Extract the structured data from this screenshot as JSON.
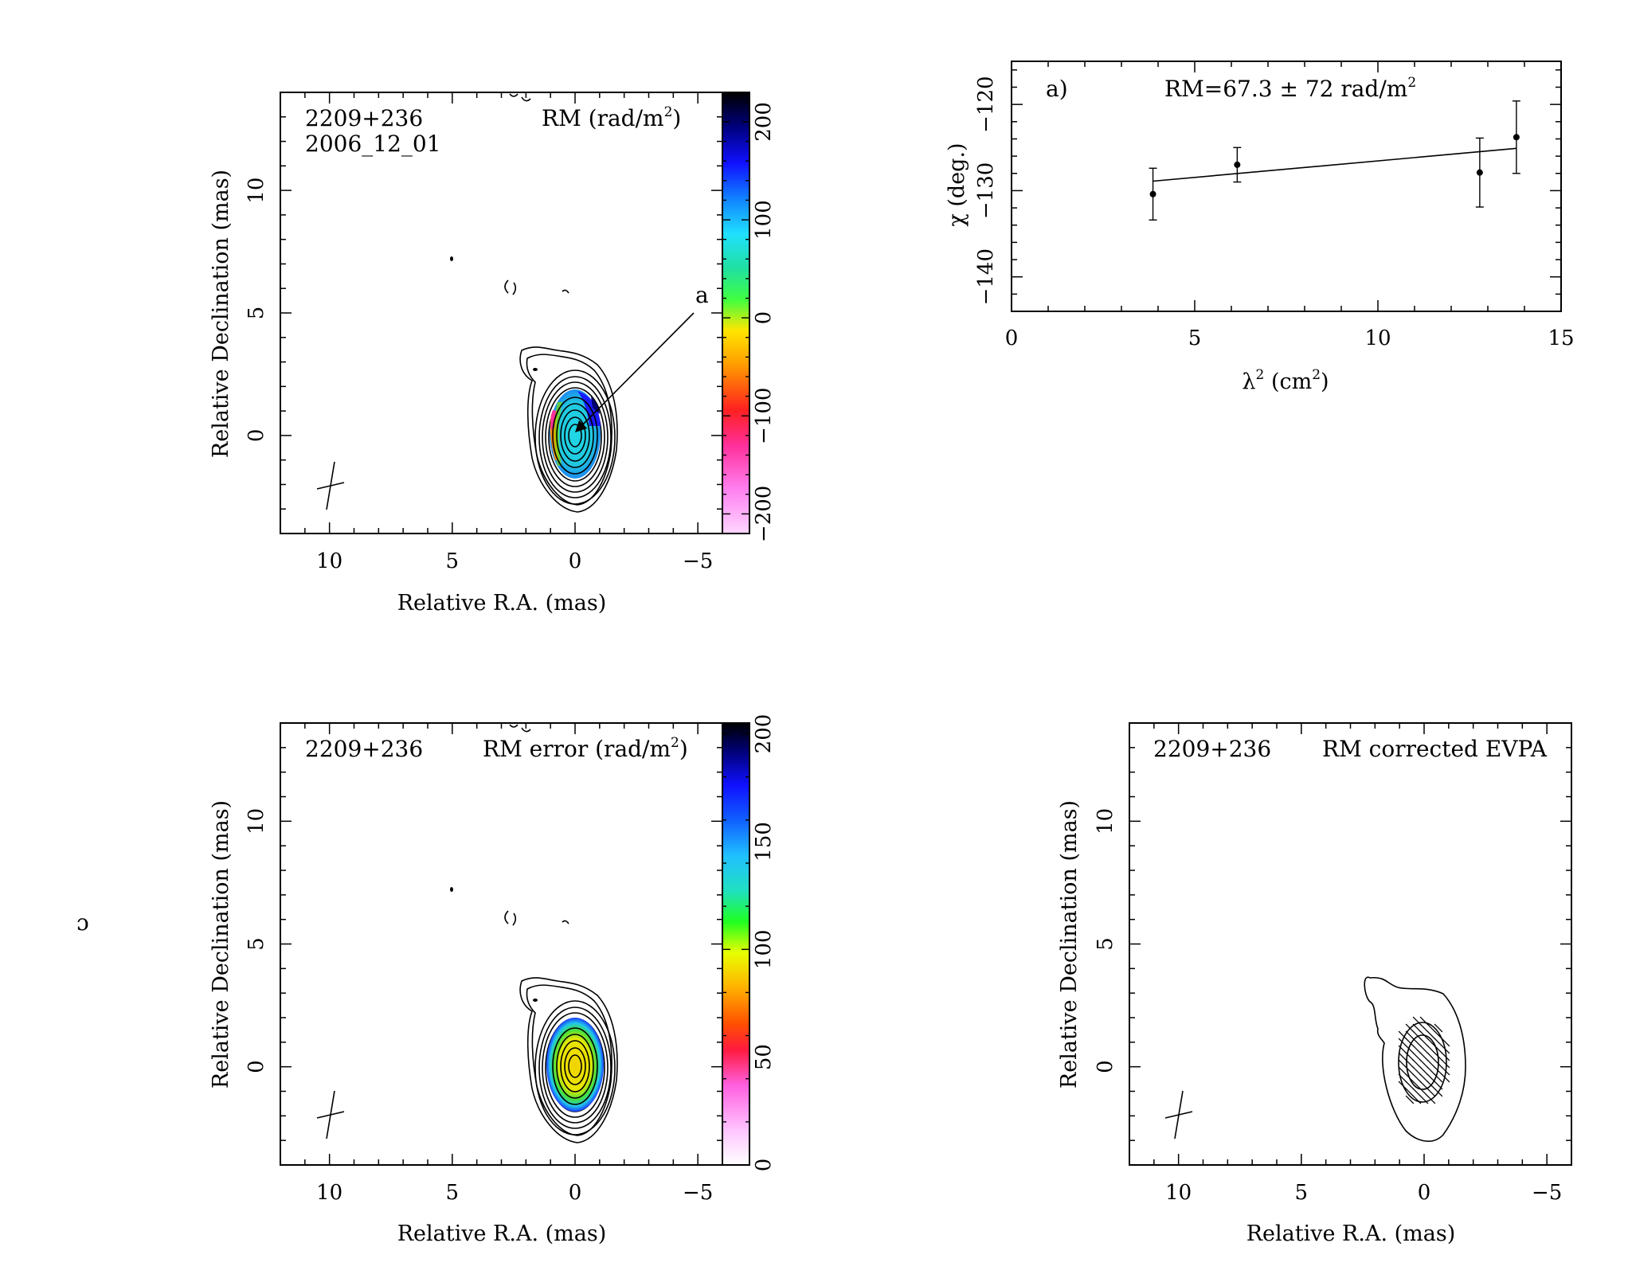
{
  "panels": {
    "rm_map": {
      "source": "2209+236",
      "epoch": "2006_12_01",
      "label_main": "RM (rad/m",
      "label_sup": "2",
      "label_end": ")",
      "arrow_label": "a",
      "xlabel": "Relative R.A. (mas)",
      "ylabel": "Relative Declination (mas)",
      "xticks": [
        "10",
        "5",
        "0",
        "−5"
      ],
      "yticks": [
        "0",
        "5",
        "10"
      ],
      "colorbar_ticks": [
        "200",
        "100",
        "0",
        "−100",
        "−200"
      ]
    },
    "rm_error_map": {
      "source": "2209+236",
      "label_main": "RM error (rad/m",
      "label_sup": "2",
      "label_end": ")",
      "xlabel": "Relative R.A. (mas)",
      "ylabel": "Relative Declination (mas)",
      "xticks": [
        "10",
        "5",
        "0",
        "−5"
      ],
      "yticks": [
        "0",
        "5",
        "10"
      ],
      "colorbar_ticks": [
        "200",
        "150",
        "100",
        "50",
        "0"
      ]
    },
    "evpa_map": {
      "source": "2209+236",
      "label": "RM corrected EVPA",
      "xlabel": "Relative R.A. (mas)",
      "ylabel": "Relative Declination (mas)",
      "xticks": [
        "10",
        "5",
        "0",
        "−5"
      ],
      "yticks": [
        "0",
        "5",
        "10"
      ]
    },
    "fit": {
      "panel_label": "a)",
      "rm_text": "RM=67.3 ± 72 rad/m",
      "rm_sup": "2",
      "xlabel_main": "λ",
      "xlabel_sup": "2",
      "xlabel_end": " (cm",
      "xlabel_sup2": "2",
      "xlabel_close": ")",
      "ylabel": "χ (deg.)",
      "xticks": [
        "0",
        "5",
        "10",
        "15"
      ],
      "yticks": [
        "−120",
        "−130",
        "−140"
      ]
    },
    "stray_glyph": "ɔ"
  },
  "chart_data": [
    {
      "type": "heatmap",
      "title": "RM (rad/m²)",
      "source": "2209+236",
      "epoch": "2006_12_01",
      "xlabel": "Relative R.A. (mas)",
      "ylabel": "Relative Declination (mas)",
      "xlim": [
        12,
        -6
      ],
      "ylim": [
        -4,
        14
      ],
      "colorbar_range": [
        -220,
        230
      ],
      "colorbar_ticks": [
        200,
        100,
        0,
        -100,
        -200
      ],
      "contours": "total intensity, ~9 levels, core at (0, 0) plus jet extension toward (2, 3)",
      "rm_region_center": [
        0,
        0
      ],
      "dominant_rm": 67.3,
      "annotation": {
        "label": "a",
        "points_to": [
          0,
          0.4
        ]
      }
    },
    {
      "type": "scatter",
      "title": "RM=67.3 ± 72 rad/m²",
      "xlabel": "λ² (cm²)",
      "ylabel": "χ (deg.)",
      "xlim": [
        0,
        15
      ],
      "ylim": [
        -144,
        -115
      ],
      "points": [
        {
          "x": 3.86,
          "y": -130.4,
          "err": 3.0
        },
        {
          "x": 6.16,
          "y": -127.0,
          "err": 2.0
        },
        {
          "x": 12.78,
          "y": -127.9,
          "err": 4.0
        },
        {
          "x": 13.78,
          "y": -123.8,
          "err": 4.2
        }
      ],
      "fit_line": {
        "x": [
          3.86,
          13.78
        ],
        "y": [
          -128.9,
          -125.1
        ]
      },
      "rm": 67.3,
      "rm_error": 72
    },
    {
      "type": "heatmap",
      "title": "RM error (rad/m²)",
      "source": "2209+236",
      "xlabel": "Relative R.A. (mas)",
      "ylabel": "Relative Declination (mas)",
      "xlim": [
        12,
        -6
      ],
      "ylim": [
        -4,
        14
      ],
      "colorbar_range": [
        0,
        205
      ],
      "colorbar_ticks": [
        200,
        150,
        100,
        50,
        0
      ]
    },
    {
      "type": "other",
      "title": "RM corrected EVPA",
      "source": "2209+236",
      "xlabel": "Relative R.A. (mas)",
      "ylabel": "Relative Declination (mas)",
      "xlim": [
        12,
        -6
      ],
      "ylim": [
        -4,
        14
      ],
      "evpa_vectors": "short ticks across core region, ~50 deg orientation"
    }
  ]
}
